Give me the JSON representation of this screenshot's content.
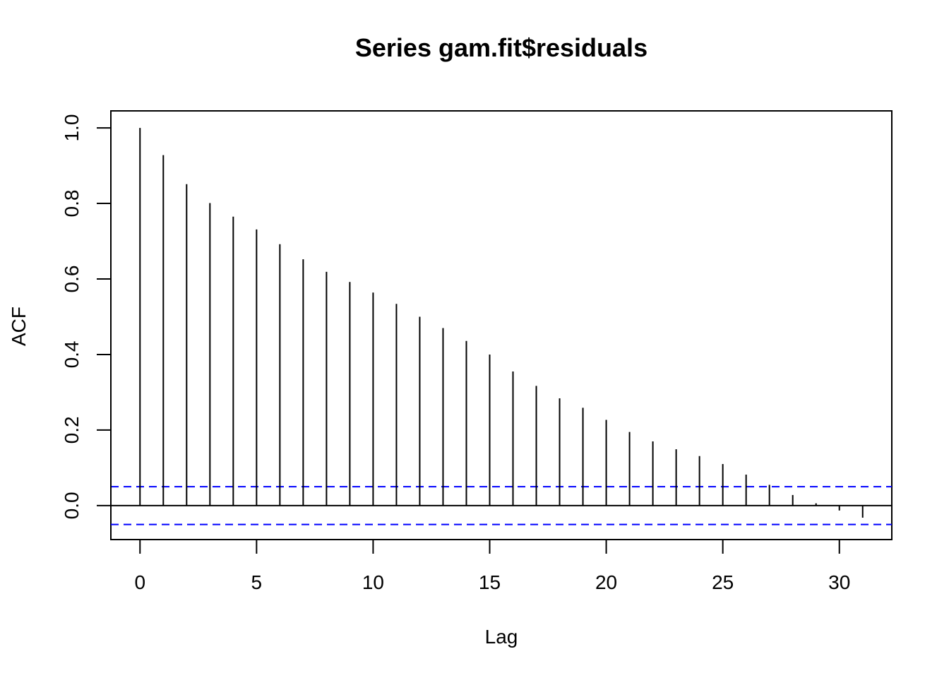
{
  "chart_data": {
    "type": "bar",
    "plot_style": "acf-lollipop",
    "title": "Series  gam.fit$residuals",
    "xlabel": "Lag",
    "ylabel": "ACF",
    "xlim": [
      -1.25,
      32.25
    ],
    "ylim": [
      -0.09,
      1.045
    ],
    "x_ticks": [
      0,
      5,
      10,
      15,
      20,
      25,
      30
    ],
    "x_tick_labels": [
      "0",
      "5",
      "10",
      "15",
      "20",
      "25",
      "30"
    ],
    "y_ticks": [
      0.0,
      0.2,
      0.4,
      0.6,
      0.8,
      1.0
    ],
    "y_tick_labels": [
      "0.0",
      "0.2",
      "0.4",
      "0.6",
      "0.8",
      "1.0"
    ],
    "lags": [
      0,
      1,
      2,
      3,
      4,
      5,
      6,
      7,
      8,
      9,
      10,
      11,
      12,
      13,
      14,
      15,
      16,
      17,
      18,
      19,
      20,
      21,
      22,
      23,
      24,
      25,
      26,
      27,
      28,
      29,
      30,
      31
    ],
    "values": [
      1.0,
      0.928,
      0.851,
      0.801,
      0.765,
      0.731,
      0.692,
      0.652,
      0.619,
      0.592,
      0.564,
      0.534,
      0.5,
      0.47,
      0.436,
      0.4,
      0.355,
      0.317,
      0.284,
      0.259,
      0.227,
      0.195,
      0.17,
      0.149,
      0.131,
      0.11,
      0.082,
      0.055,
      0.028,
      0.006,
      -0.013,
      -0.032
    ],
    "zero_line": 0.0,
    "confidence_bounds": [
      0.05,
      -0.05
    ],
    "bound_color": "#0000ff",
    "grid": false,
    "legend": "none"
  }
}
